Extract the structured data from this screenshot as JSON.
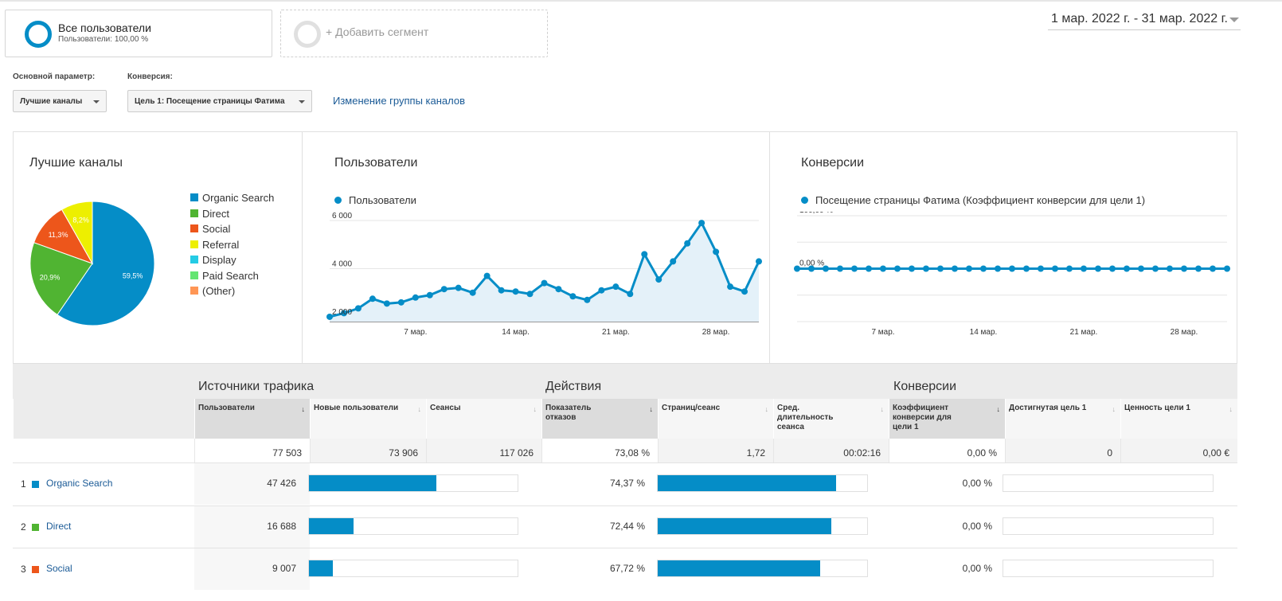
{
  "segments": {
    "active_title": "Все пользователи",
    "active_sub": "Пользователи: 100,00 %",
    "add_label": "+ Добавить сегмент"
  },
  "date_range": "1 мар. 2022 г. - 31 мар. 2022 г.",
  "filters": {
    "primary_label": "Основной параметр:",
    "primary_value": "Лучшие каналы",
    "conversion_label": "Конверсия:",
    "conversion_value": "Цель 1: Посещение страницы Фатима",
    "change_link": "Изменение группы каналов"
  },
  "colors": {
    "accent": "#058dc7",
    "link": "#1a5a96",
    "area_fill": "#e4f1f9"
  },
  "pie_panel": {
    "title": "Лучшие каналы",
    "legend": [
      {
        "label": "Organic Search",
        "color": "#058dc7"
      },
      {
        "label": "Direct",
        "color": "#50b432"
      },
      {
        "label": "Social",
        "color": "#ed561b"
      },
      {
        "label": "Referral",
        "color": "#edef00"
      },
      {
        "label": "Display",
        "color": "#24cbe5"
      },
      {
        "label": "Paid Search",
        "color": "#64e572"
      },
      {
        "label": "(Other)",
        "color": "#ff9655"
      }
    ]
  },
  "users_panel": {
    "title": "Пользователи",
    "series_label": "Пользователи"
  },
  "conv_panel": {
    "title": "Конверсии",
    "series_label": "Посещение страницы Фатима (Коэффициент конверсии для цели 1)"
  },
  "chart_data": [
    {
      "type": "pie",
      "title": "Лучшие каналы",
      "categories": [
        "Organic Search",
        "Direct",
        "Social",
        "Referral"
      ],
      "values": [
        59.5,
        20.9,
        11.3,
        8.2
      ],
      "labels": [
        "59,5%",
        "20,9%",
        "11,3%",
        "8,2%"
      ],
      "colors": [
        "#058dc7",
        "#50b432",
        "#ed561b",
        "#edef00"
      ]
    },
    {
      "type": "area",
      "title": "Пользователи",
      "series": [
        {
          "name": "Пользователи",
          "values": [
            2000,
            2150,
            2350,
            2750,
            2550,
            2600,
            2800,
            2900,
            3150,
            3200,
            3000,
            3700,
            3100,
            3050,
            2950,
            3400,
            3150,
            2850,
            2700,
            3100,
            3250,
            2950,
            4600,
            3550,
            4300,
            5050,
            5900,
            4700,
            3250,
            3050,
            4300
          ]
        }
      ],
      "x": [
        1,
        2,
        3,
        4,
        5,
        6,
        7,
        8,
        9,
        10,
        11,
        12,
        13,
        14,
        15,
        16,
        17,
        18,
        19,
        20,
        21,
        22,
        23,
        24,
        25,
        26,
        27,
        28,
        29,
        30,
        31
      ],
      "x_ticks": [
        {
          "x": 7,
          "label": "7 мар."
        },
        {
          "x": 14,
          "label": "14 мар."
        },
        {
          "x": 21,
          "label": "21 мар."
        },
        {
          "x": 28,
          "label": "28 мар."
        }
      ],
      "y_ticks": [
        {
          "y": 2000,
          "label": "2 000"
        },
        {
          "y": 4000,
          "label": "4 000"
        },
        {
          "y": 6000,
          "label": "6 000"
        }
      ],
      "ylim": [
        1800,
        6200
      ]
    },
    {
      "type": "line",
      "title": "Конверсии",
      "series": [
        {
          "name": "Посещение страницы Фатима (Коэффициент конверсии для цели 1)",
          "values": [
            0,
            0,
            0,
            0,
            0,
            0,
            0,
            0,
            0,
            0,
            0,
            0,
            0,
            0,
            0,
            0,
            0,
            0,
            0,
            0,
            0,
            0,
            0,
            0,
            0,
            0,
            0,
            0,
            0,
            0,
            0
          ]
        }
      ],
      "x": [
        1,
        2,
        3,
        4,
        5,
        6,
        7,
        8,
        9,
        10,
        11,
        12,
        13,
        14,
        15,
        16,
        17,
        18,
        19,
        20,
        21,
        22,
        23,
        24,
        25,
        26,
        27,
        28,
        29,
        30,
        31
      ],
      "x_ticks": [
        {
          "x": 7,
          "label": "7 мар."
        },
        {
          "x": 14,
          "label": "14 мар."
        },
        {
          "x": 21,
          "label": "21 мар."
        },
        {
          "x": 28,
          "label": "28 мар."
        }
      ],
      "y_ticks": [
        {
          "y": 0,
          "label": "0,00 %"
        },
        {
          "y": 100,
          "label": "100,00 %"
        }
      ],
      "ylim": [
        -100,
        100
      ]
    }
  ],
  "table": {
    "groups": [
      "Источники трафика",
      "Действия",
      "Конверсии"
    ],
    "columns": [
      "Пользователи",
      "Новые пользователи",
      "Сеансы",
      "Показатель отказов",
      "Страниц/сеанс",
      "Сред. длительность сеанса",
      "Коэффициент конверсии для цели 1",
      "Достигнутая цель 1",
      "Ценность цели 1"
    ],
    "totals": [
      "77 503",
      "73 906",
      "117 026",
      "73,08 %",
      "1,72",
      "00:02:16",
      "0,00 %",
      "0",
      "0,00 €"
    ],
    "rows": [
      {
        "rank": "1",
        "name": "Organic Search",
        "color": "#058dc7",
        "users": "47 426",
        "users_share": 0.612,
        "bounce": "74,37 %",
        "bounce_share": 0.85,
        "conv": "0,00 %",
        "conv_share": 0
      },
      {
        "rank": "2",
        "name": "Direct",
        "color": "#50b432",
        "users": "16 688",
        "users_share": 0.215,
        "bounce": "72,44 %",
        "bounce_share": 0.83,
        "conv": "0,00 %",
        "conv_share": 0
      },
      {
        "rank": "3",
        "name": "Social",
        "color": "#ed561b",
        "users": "9 007",
        "users_share": 0.116,
        "bounce": "67,72 %",
        "bounce_share": 0.775,
        "conv": "0,00 %",
        "conv_share": 0
      }
    ]
  }
}
